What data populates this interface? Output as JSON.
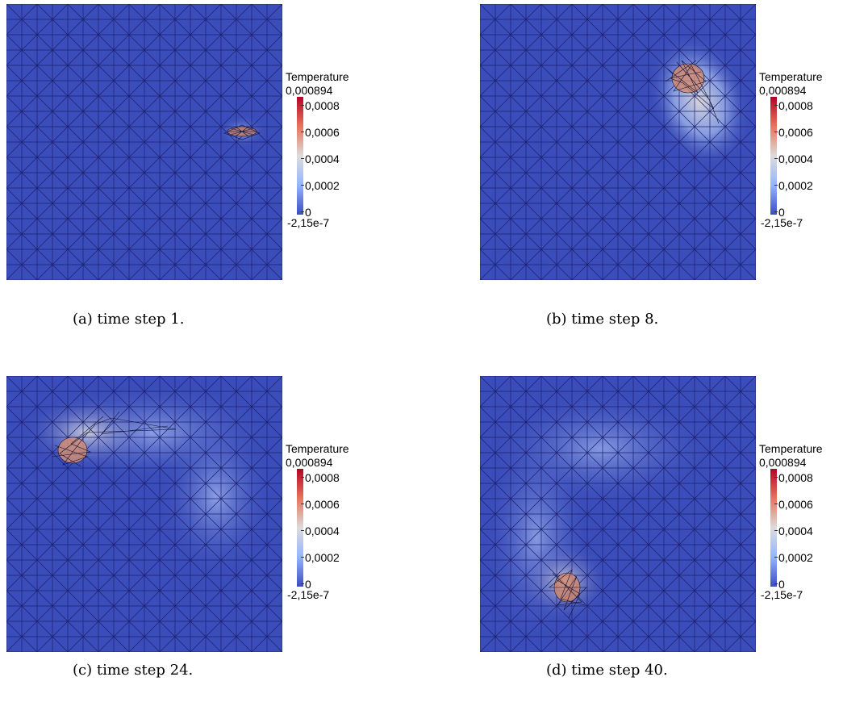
{
  "legend": {
    "title": "Temperature",
    "max_label": "0,000894",
    "min_label": "-2,15e-7",
    "ticks": [
      "0,0008",
      "0,0006",
      "0,0004",
      "0,0002",
      "0"
    ]
  },
  "colormap": {
    "low": "#3b4cc0",
    "mid": "#dddcdc",
    "high": "#b40426",
    "mesh": "#1d1f6e",
    "background": "#3a4dba"
  },
  "panels": [
    {
      "id": "a",
      "caption": "(a) time step 1."
    },
    {
      "id": "b",
      "caption": "(b) time step 8."
    },
    {
      "id": "c",
      "caption": "(c) time step 24."
    },
    {
      "id": "d",
      "caption": "(d) time step 40."
    }
  ]
}
